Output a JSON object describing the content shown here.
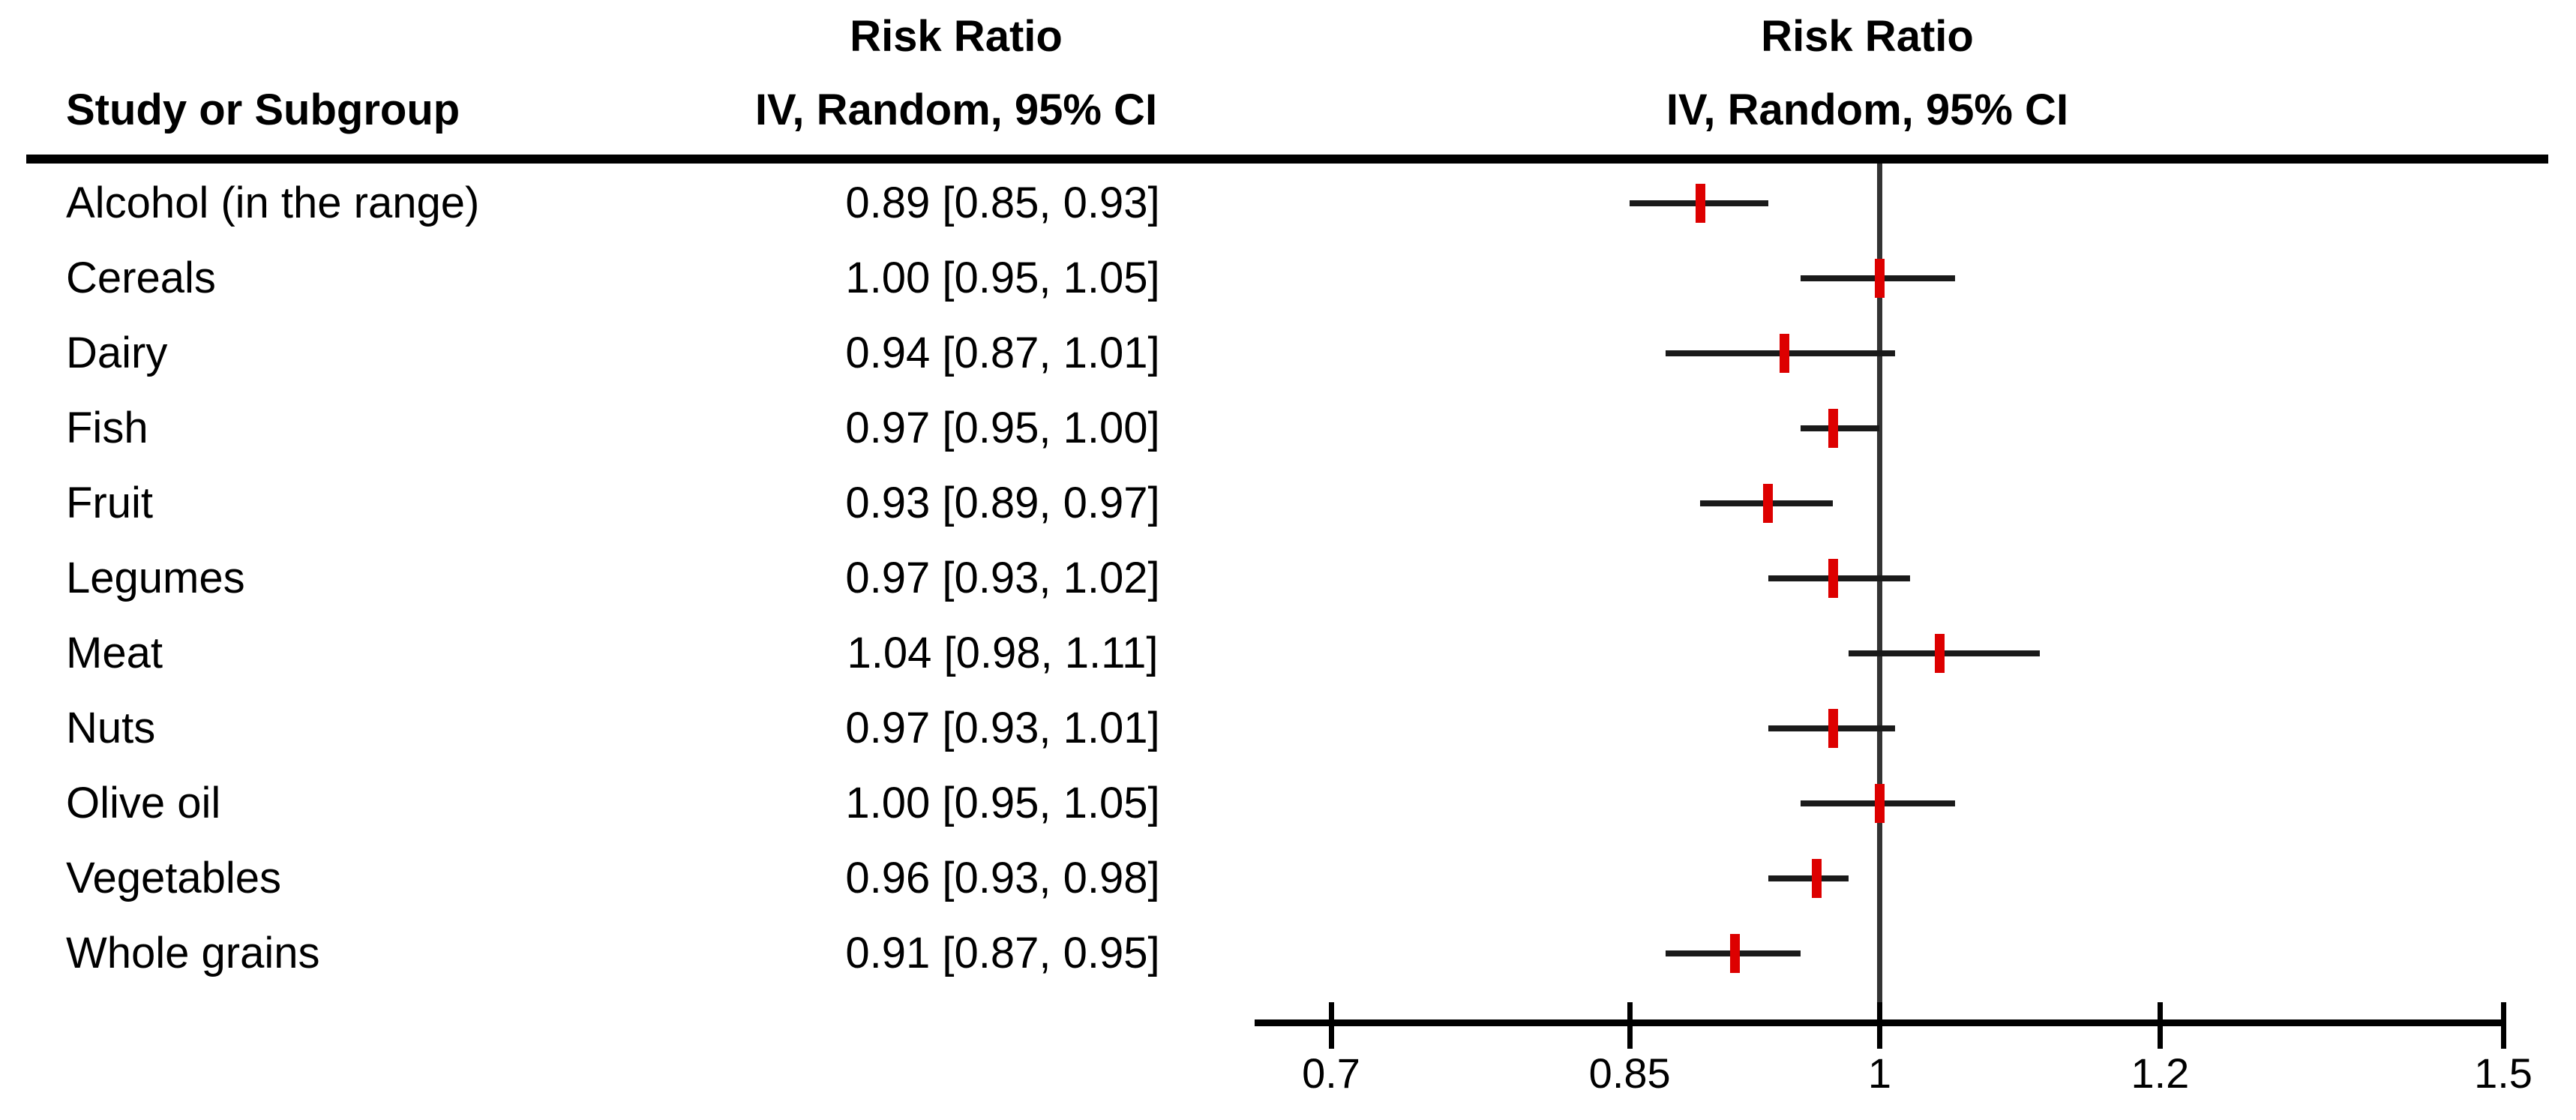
{
  "chart_data": {
    "type": "forest",
    "study_column_header": "Study or Subgroup",
    "effect_column_header": {
      "line1": "Risk Ratio",
      "line2": "IV, Random, 95% CI"
    },
    "plot_header": {
      "line1": "Risk Ratio",
      "line2": "IV, Random, 95% CI"
    },
    "x_axis": {
      "scale": "log",
      "tick_values": [
        0.7,
        0.85,
        1,
        1.2,
        1.5
      ],
      "tick_labels": [
        "0.7",
        "0.85",
        "1",
        "1.2",
        "1.5"
      ],
      "reference_value": 1
    },
    "rows": [
      {
        "label": "Alcohol (in the range)",
        "effect_text": "0.89 [0.85, 0.93]",
        "estimate": 0.89,
        "ci_low": 0.85,
        "ci_high": 0.93
      },
      {
        "label": "Cereals",
        "effect_text": "1.00 [0.95, 1.05]",
        "estimate": 1.0,
        "ci_low": 0.95,
        "ci_high": 1.05
      },
      {
        "label": "Dairy",
        "effect_text": "0.94 [0.87, 1.01]",
        "estimate": 0.94,
        "ci_low": 0.87,
        "ci_high": 1.01
      },
      {
        "label": "Fish",
        "effect_text": "0.97 [0.95, 1.00]",
        "estimate": 0.97,
        "ci_low": 0.95,
        "ci_high": 1.0
      },
      {
        "label": "Fruit",
        "effect_text": "0.93 [0.89, 0.97]",
        "estimate": 0.93,
        "ci_low": 0.89,
        "ci_high": 0.97
      },
      {
        "label": "Legumes",
        "effect_text": "0.97 [0.93, 1.02]",
        "estimate": 0.97,
        "ci_low": 0.93,
        "ci_high": 1.02
      },
      {
        "label": "Meat",
        "effect_text": "1.04 [0.98, 1.11]",
        "estimate": 1.04,
        "ci_low": 0.98,
        "ci_high": 1.11
      },
      {
        "label": "Nuts",
        "effect_text": "0.97 [0.93, 1.01]",
        "estimate": 0.97,
        "ci_low": 0.93,
        "ci_high": 1.01
      },
      {
        "label": "Olive oil",
        "effect_text": "1.00 [0.95, 1.05]",
        "estimate": 1.0,
        "ci_low": 0.95,
        "ci_high": 1.05
      },
      {
        "label": "Vegetables",
        "effect_text": "0.96 [0.93, 0.98]",
        "estimate": 0.96,
        "ci_low": 0.93,
        "ci_high": 0.98
      },
      {
        "label": "Whole grains",
        "effect_text": "0.91 [0.87, 0.95]",
        "estimate": 0.91,
        "ci_low": 0.87,
        "ci_high": 0.95
      }
    ],
    "colors": {
      "marker": "#dd0000",
      "ci_line": "#1a1a1a",
      "reference_line": "#333333",
      "axis": "#000000",
      "text": "#000000",
      "background": "#ffffff"
    }
  }
}
